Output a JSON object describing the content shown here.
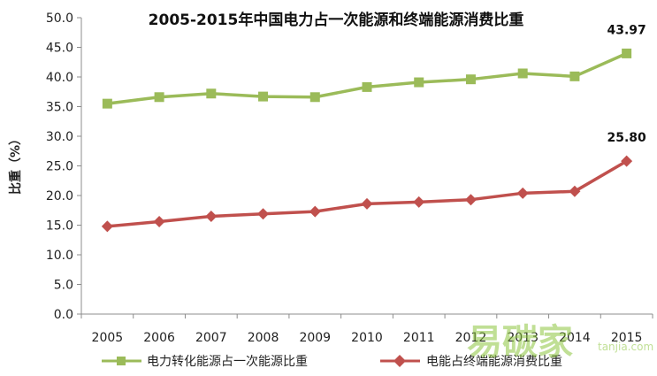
{
  "chart_data": {
    "type": "line",
    "title": "2005-2015年中国电力占一次能源和终端能源消费比重",
    "ylabel": "比重（%）",
    "xlabel": "",
    "categories": [
      "2005",
      "2006",
      "2007",
      "2008",
      "2009",
      "2010",
      "2011",
      "2012",
      "2013",
      "2014",
      "2015"
    ],
    "ylim": [
      0,
      50
    ],
    "yticks": [
      "0.0",
      "5.0",
      "10.0",
      "15.0",
      "20.0",
      "25.0",
      "30.0",
      "35.0",
      "40.0",
      "45.0",
      "50.0"
    ],
    "series": [
      {
        "name": "电力转化能源占一次能源比重",
        "color": "#9BBB59",
        "marker": "square",
        "values": [
          35.5,
          36.6,
          37.2,
          36.7,
          36.6,
          38.3,
          39.1,
          39.6,
          40.6,
          40.1,
          43.97
        ],
        "end_label": "43.97"
      },
      {
        "name": "电能占终端能源消费比重",
        "color": "#C0504D",
        "marker": "diamond",
        "values": [
          14.8,
          15.6,
          16.5,
          16.9,
          17.3,
          18.6,
          18.9,
          19.3,
          20.4,
          20.7,
          25.8
        ],
        "end_label": "25.80"
      }
    ],
    "grid": false,
    "legend_position": "bottom"
  },
  "watermark": {
    "text": "易碳家",
    "domain": "tanjia.com",
    "color": "#8DC63F"
  }
}
